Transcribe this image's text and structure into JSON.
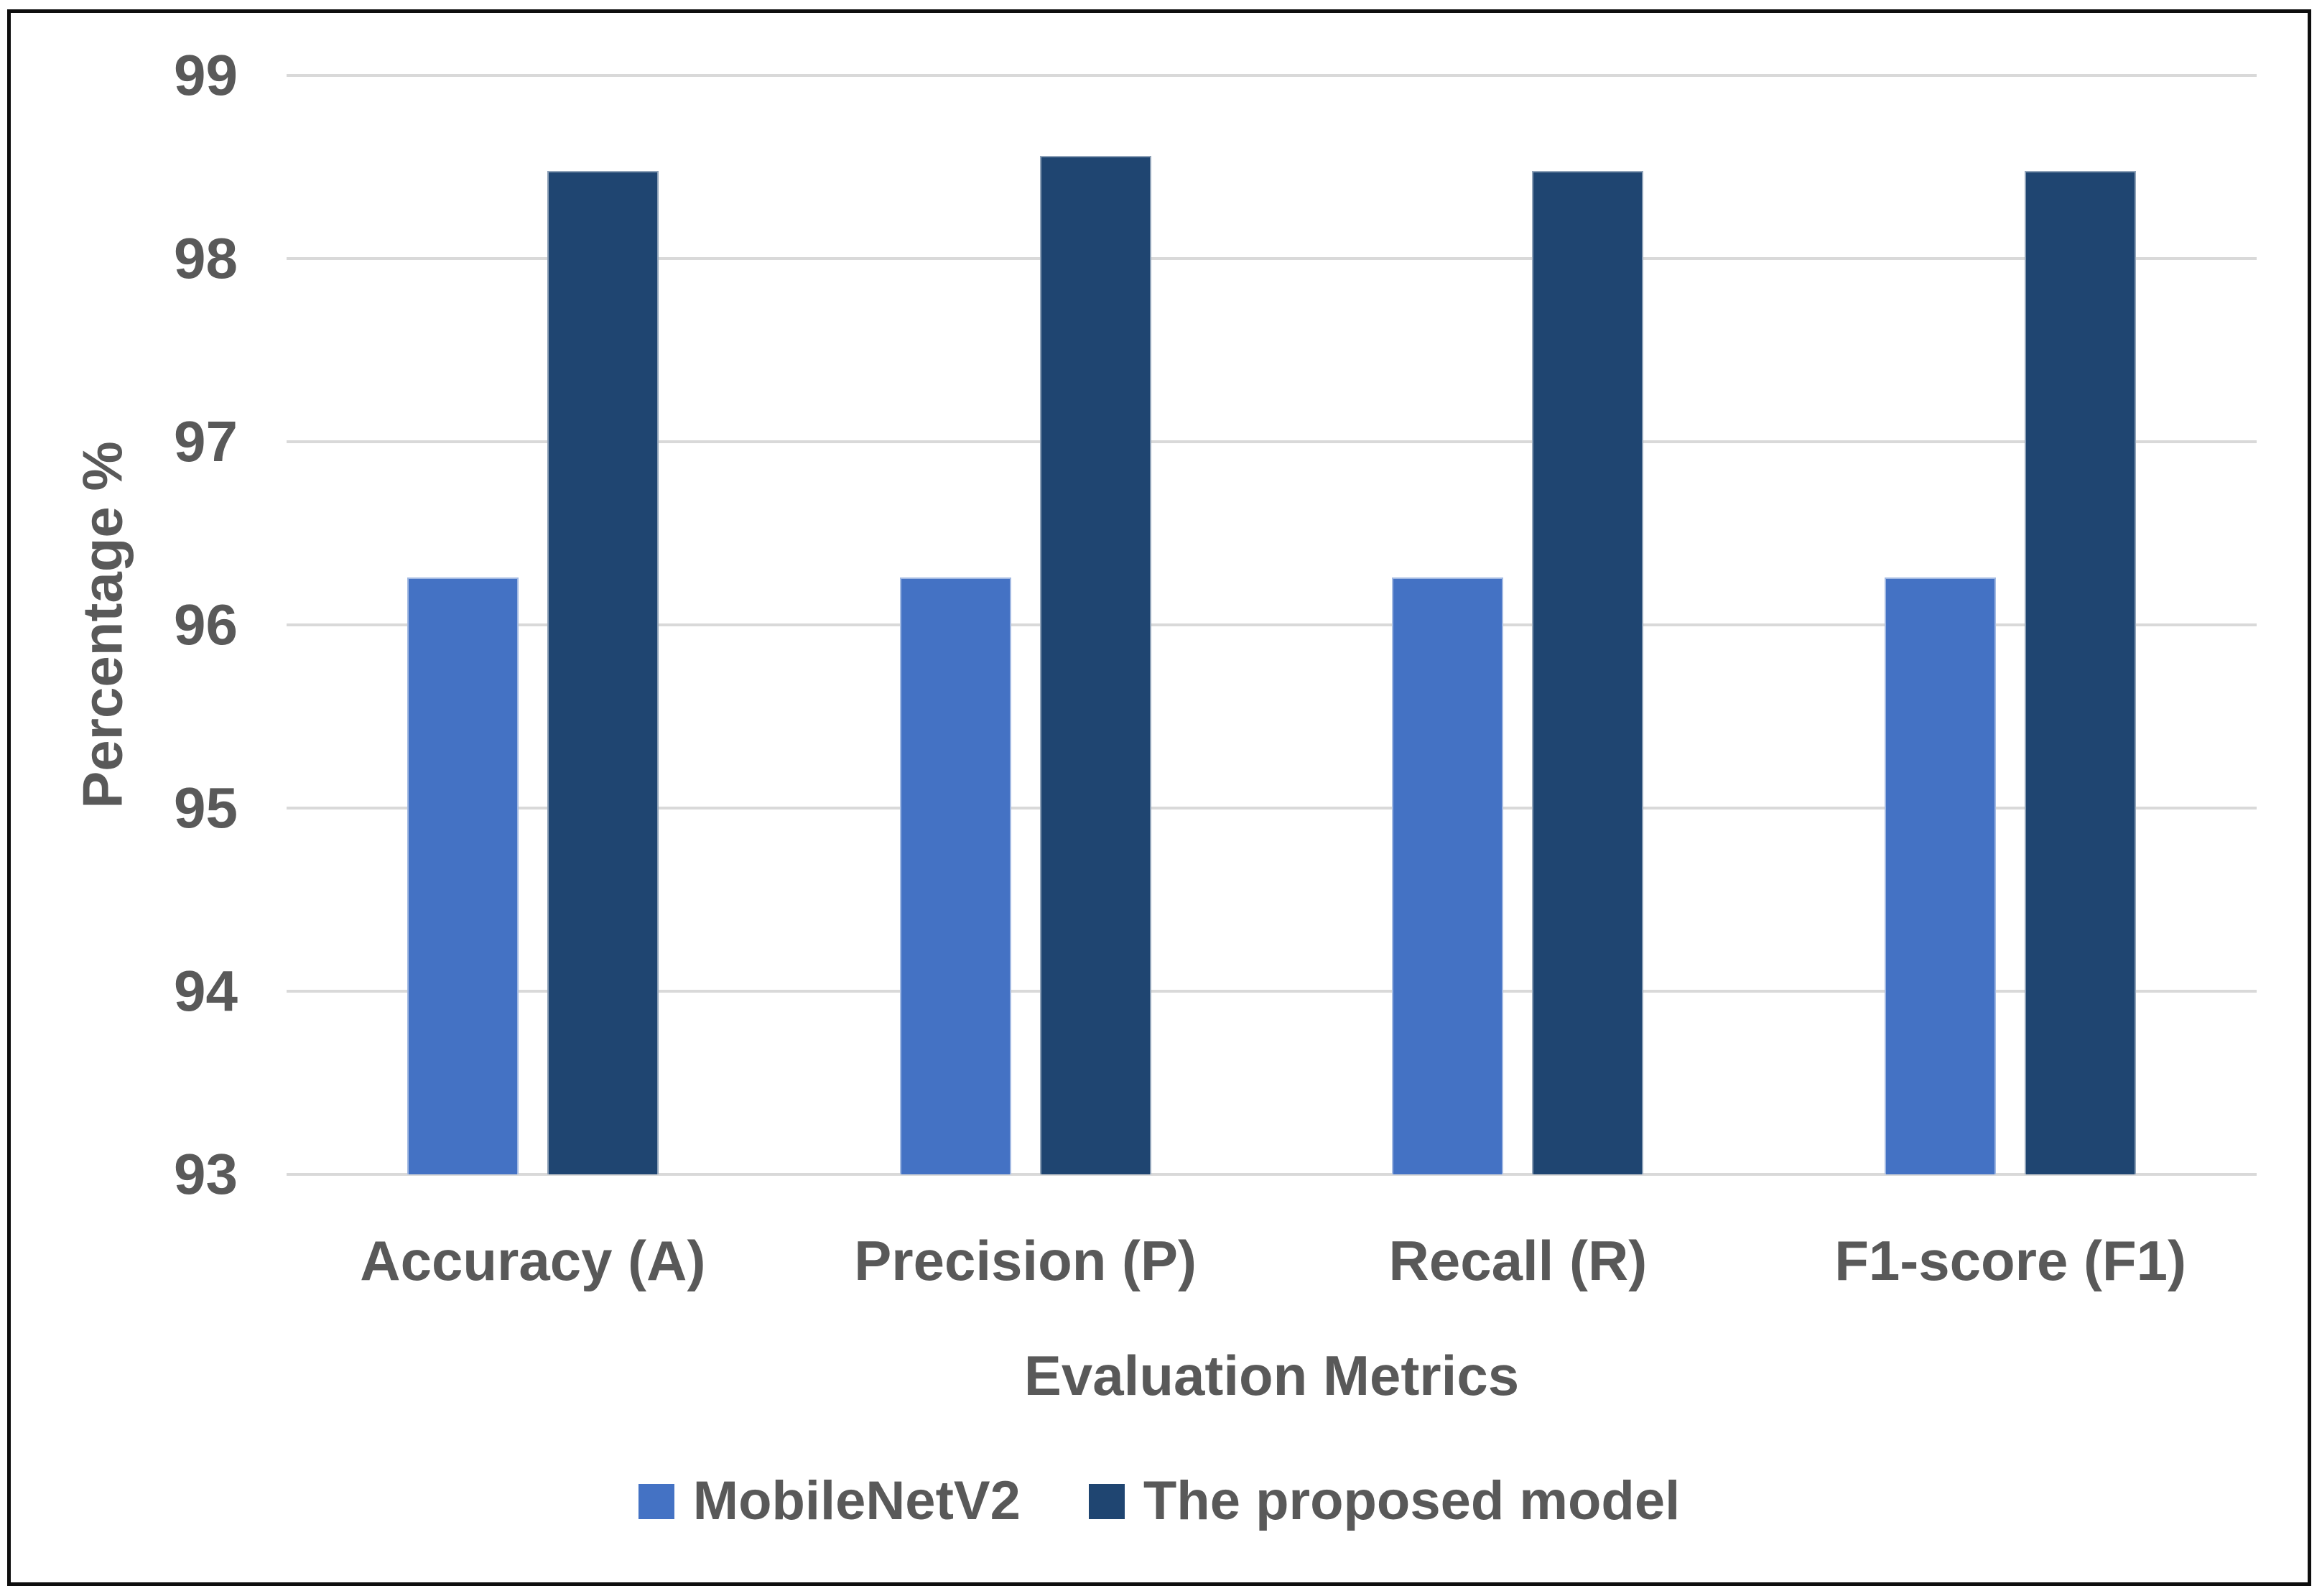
{
  "styles": {
    "background": "#FFFFFF",
    "frame_border": "#0E0E0E",
    "gridline": "#D9D9D9",
    "text": "#595959",
    "bar_edge": "rgba(255,255,255,0.5)"
  },
  "chart_data": {
    "type": "bar",
    "title": "",
    "categories": [
      "Accuracy (A)",
      "Precision (P)",
      "Recall (R)",
      "F1-score (F1)"
    ],
    "series": [
      {
        "name": "MobileNetV2",
        "color": "#4472C4",
        "values": [
          96.26,
          96.26,
          96.26,
          96.26
        ]
      },
      {
        "name": "The proposed model",
        "color": "#1F4571",
        "values": [
          98.48,
          98.56,
          98.48,
          98.48
        ]
      }
    ],
    "xlabel": "Evaluation Metrics",
    "ylabel": "Percentage %",
    "ylim": [
      93,
      99
    ],
    "yticks": [
      93,
      94,
      95,
      96,
      97,
      98,
      99
    ],
    "grid": true,
    "legend_position": "bottom"
  }
}
